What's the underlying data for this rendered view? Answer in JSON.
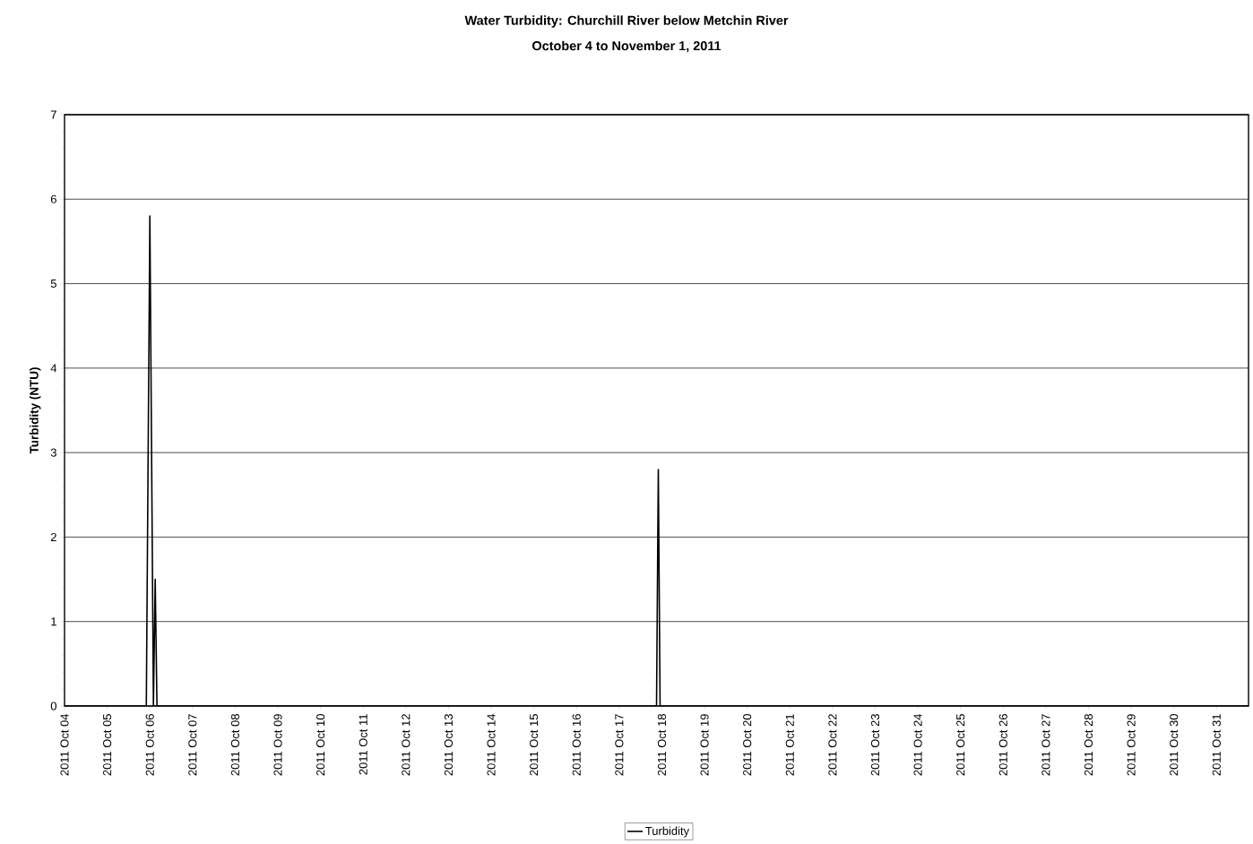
{
  "chart_data": {
    "type": "line",
    "title": "Water Turbidity: Churchill River below Metchin River",
    "subtitle": "October 4 to November 1, 2011",
    "ylabel": "Turbidity (NTU)",
    "x": [
      "2011-10-04T00:00",
      "2011-10-05T22:00",
      "2011-10-06T00:00",
      "2011-10-06T02:00",
      "2011-10-06T03:00",
      "2011-10-06T04:00",
      "2011-10-17T21:00",
      "2011-10-17T22:00",
      "2011-10-17T23:00",
      "2011-10-31T18:00"
    ],
    "series": [
      {
        "name": "Turbidity",
        "color": "#000000",
        "values": [
          0,
          0,
          5.8,
          0,
          1.5,
          0,
          0,
          2.8,
          0,
          0
        ]
      }
    ],
    "xlim": [
      "2011-10-04T00:00",
      "2011-10-31T18:00"
    ],
    "xticks": [
      {
        "value": "2011-10-04",
        "label": "2011 Oct 04"
      },
      {
        "value": "2011-10-05",
        "label": "2011 Oct 05"
      },
      {
        "value": "2011-10-06",
        "label": "2011 Oct 06"
      },
      {
        "value": "2011-10-07",
        "label": "2011 Oct 07"
      },
      {
        "value": "2011-10-08",
        "label": "2011 Oct 08"
      },
      {
        "value": "2011-10-09",
        "label": "2011 Oct 09"
      },
      {
        "value": "2011-10-10",
        "label": "2011 Oct 10"
      },
      {
        "value": "2011-10-11",
        "label": "2011 Oct 11"
      },
      {
        "value": "2011-10-12",
        "label": "2011 Oct 12"
      },
      {
        "value": "2011-10-13",
        "label": "2011 Oct 13"
      },
      {
        "value": "2011-10-14",
        "label": "2011 Oct 14"
      },
      {
        "value": "2011-10-15",
        "label": "2011 Oct 15"
      },
      {
        "value": "2011-10-16",
        "label": "2011 Oct 16"
      },
      {
        "value": "2011-10-17",
        "label": "2011 Oct 17"
      },
      {
        "value": "2011-10-18",
        "label": "2011 Oct 18"
      },
      {
        "value": "2011-10-19",
        "label": "2011 Oct 19"
      },
      {
        "value": "2011-10-20",
        "label": "2011 Oct 20"
      },
      {
        "value": "2011-10-21",
        "label": "2011 Oct 21"
      },
      {
        "value": "2011-10-22",
        "label": "2011 Oct 22"
      },
      {
        "value": "2011-10-23",
        "label": "2011 Oct 23"
      },
      {
        "value": "2011-10-24",
        "label": "2011 Oct 24"
      },
      {
        "value": "2011-10-25",
        "label": "2011 Oct 25"
      },
      {
        "value": "2011-10-26",
        "label": "2011 Oct 26"
      },
      {
        "value": "2011-10-27",
        "label": "2011 Oct 27"
      },
      {
        "value": "2011-10-28",
        "label": "2011 Oct 28"
      },
      {
        "value": "2011-10-29",
        "label": "2011 Oct 29"
      },
      {
        "value": "2011-10-30",
        "label": "2011 Oct 30"
      },
      {
        "value": "2011-10-31",
        "label": "2011 Oct 31"
      }
    ],
    "ylim": [
      0,
      7
    ],
    "yticks": [
      0,
      1,
      2,
      3,
      4,
      5,
      6,
      7
    ],
    "grid": "y",
    "legend": "bottom",
    "marker": "none",
    "line_style": "solid"
  }
}
